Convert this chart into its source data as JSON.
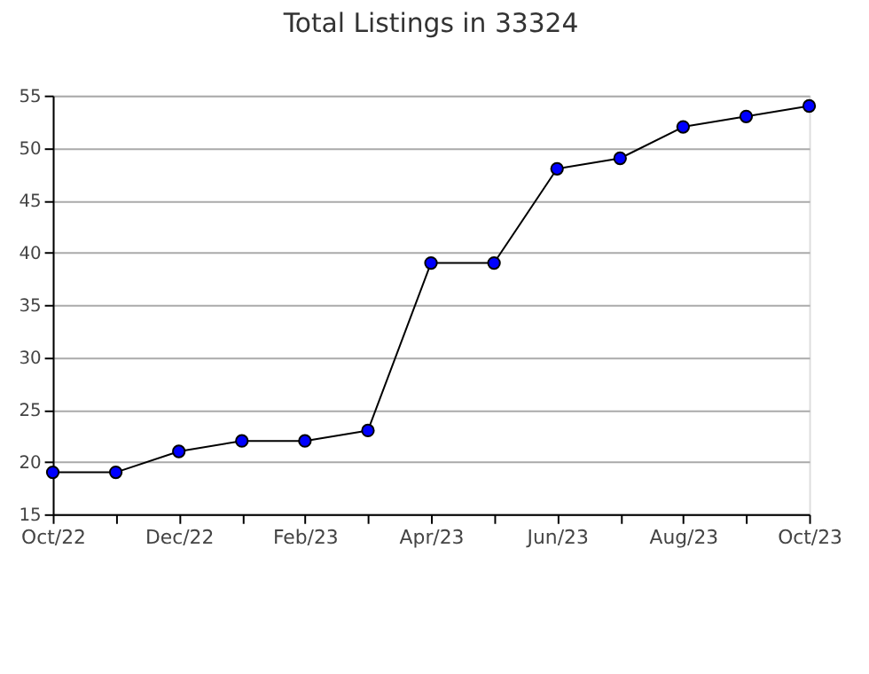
{
  "chart_data": {
    "type": "line",
    "title": "Total Listings in 33324",
    "categories": [
      "Oct/22",
      null,
      "Dec/22",
      null,
      "Feb/23",
      null,
      "Apr/23",
      null,
      "Jun/23",
      null,
      "Aug/23",
      null,
      "Oct/23"
    ],
    "series": [
      {
        "color": "#0000ff",
        "values": [
          19,
          19,
          21,
          22,
          22,
          23,
          39,
          39,
          48,
          49,
          52,
          53,
          54
        ]
      }
    ],
    "ylim": [
      15,
      55
    ],
    "yticks": [
      15,
      20,
      25,
      30,
      35,
      40,
      45,
      50,
      55
    ],
    "grid": "y",
    "marker": "circle",
    "line_style": "solid",
    "legend": false
  }
}
